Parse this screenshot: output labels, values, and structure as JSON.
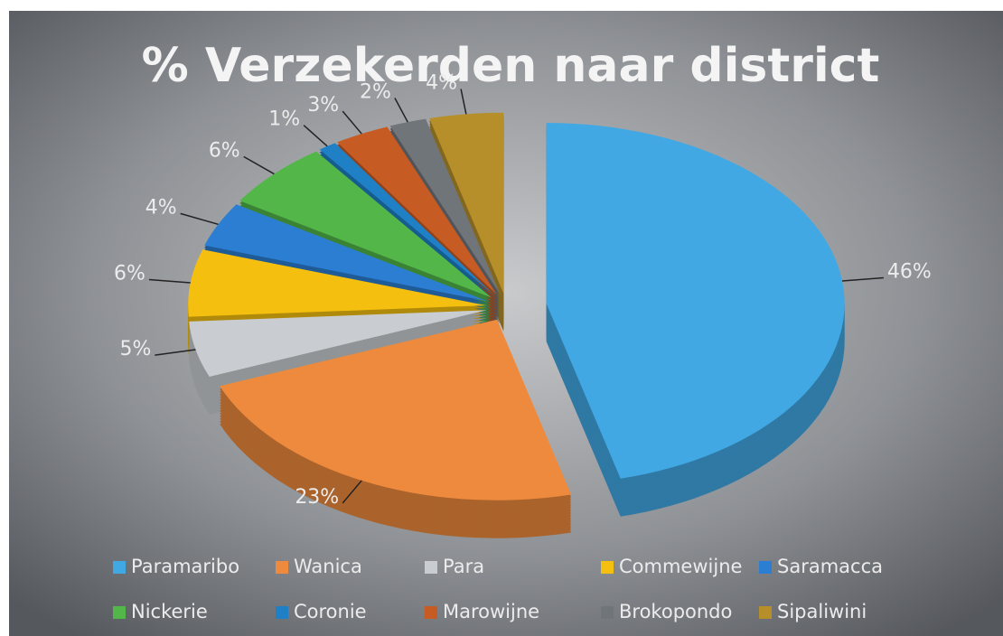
{
  "chart_data": {
    "type": "pie",
    "title": "% Verzekerden naar district",
    "categories": [
      "Paramaribo",
      "Wanica",
      "Para",
      "Commewijne",
      "Saramacca",
      "Nickerie",
      "Coronie",
      "Marowijne",
      "Brokopondo",
      "Sipaliwini"
    ],
    "values": [
      46,
      23,
      5,
      6,
      4,
      6,
      1,
      3,
      2,
      4
    ],
    "value_labels": [
      "46%",
      "23%",
      "5%",
      "6%",
      "4%",
      "6%",
      "1%",
      "3%",
      "2%",
      "4%"
    ],
    "colors": [
      "#41a8e4",
      "#ee8a3d",
      "#c9cdd1",
      "#f4bf0f",
      "#2b7ed2",
      "#52b648",
      "#1f80c6",
      "#c65b24",
      "#70757a",
      "#b68f2b"
    ],
    "legend": "bottom"
  }
}
